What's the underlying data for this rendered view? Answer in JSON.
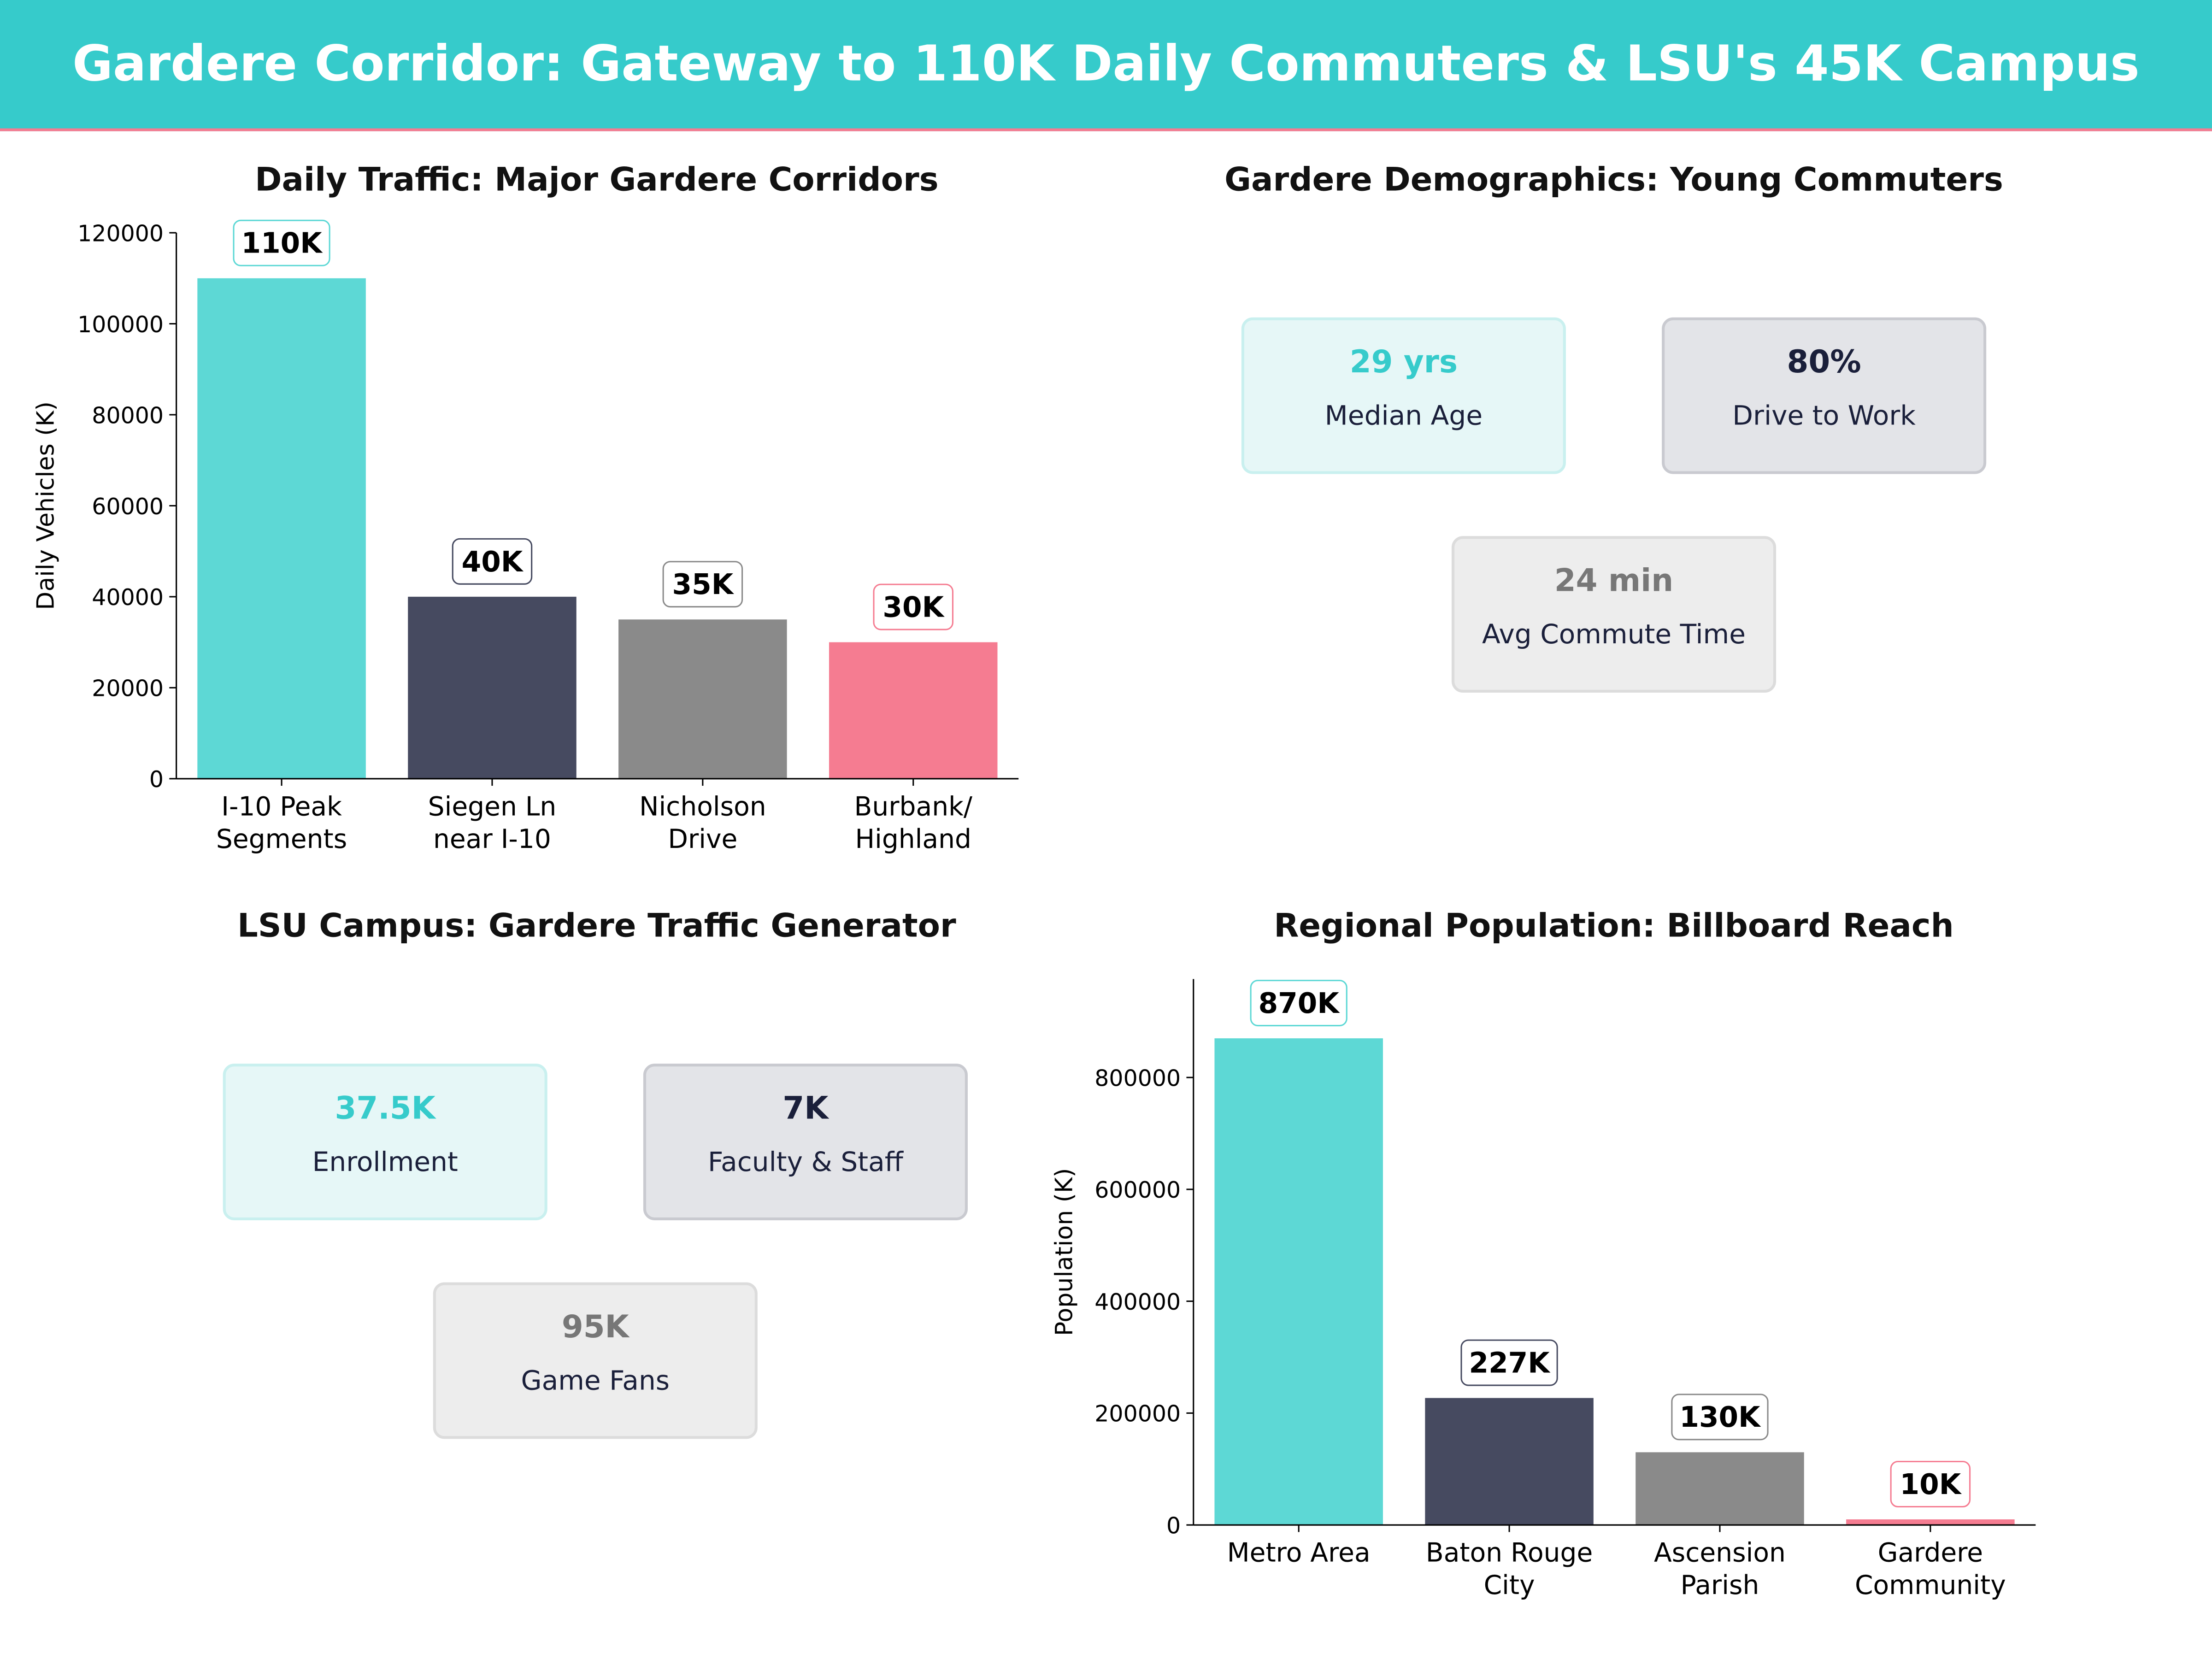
{
  "title": "Gardere Corridor: Gateway to 110K Daily Commuters & LSU's 45K Campus",
  "colors": {
    "header": "#36CBCB",
    "accent": "#F57C91",
    "bars": [
      "#5DD8D5",
      "#464A60",
      "#8A8A8A",
      "#F57C91"
    ]
  },
  "demographics": {
    "title": "Gardere Demographics: Young Commuters",
    "cards": [
      {
        "value": "29 yrs",
        "label": "Median Age"
      },
      {
        "value": "80%",
        "label": "Drive to Work"
      },
      {
        "value": "24 min",
        "label": "Avg Commute Time"
      }
    ]
  },
  "lsu": {
    "title": "LSU Campus: Gardere Traffic Generator",
    "cards": [
      {
        "value": "37.5K",
        "label": "Enrollment"
      },
      {
        "value": "7K",
        "label": "Faculty & Staff"
      },
      {
        "value": "95K",
        "label": "Game Fans"
      }
    ]
  },
  "chart_data": [
    {
      "type": "bar",
      "title": "Daily Traffic: Major Gardere Corridors",
      "ylabel": "Daily Vehicles (K)",
      "categories": [
        [
          "I-10 Peak",
          "Segments"
        ],
        [
          "Siegen Ln",
          "near I-10"
        ],
        [
          "Nicholson",
          "Drive"
        ],
        [
          "Burbank/",
          "Highland"
        ]
      ],
      "values": [
        110000,
        40000,
        35000,
        30000
      ],
      "labels": [
        "110K",
        "40K",
        "35K",
        "30K"
      ],
      "yticks": [
        0,
        20000,
        40000,
        60000,
        80000,
        100000,
        120000
      ],
      "ylim": [
        0,
        120000
      ]
    },
    {
      "type": "bar",
      "title": "Regional Population: Billboard Reach",
      "ylabel": "Population (K)",
      "categories": [
        [
          "Metro Area"
        ],
        [
          "Baton Rouge",
          "City"
        ],
        [
          "Ascension",
          "Parish"
        ],
        [
          "Gardere",
          "Community"
        ]
      ],
      "values": [
        870000,
        227000,
        130000,
        10000
      ],
      "labels": [
        "870K",
        "227K",
        "130K",
        "10K"
      ],
      "yticks": [
        0,
        200000,
        400000,
        600000,
        800000
      ],
      "ylim": [
        0,
        976000
      ]
    }
  ]
}
